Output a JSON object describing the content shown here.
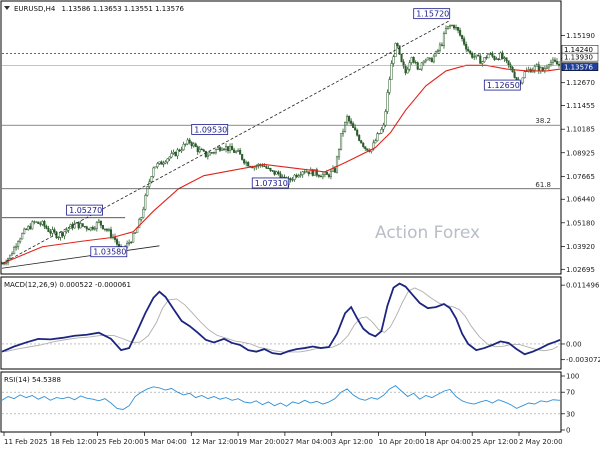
{
  "chart_data": [
    {
      "type": "candlestick",
      "symbol": "EURUSD,H4",
      "ohlc_header": "1.13586 1.13653 1.13551 1.13576",
      "watermark": "Action Forex",
      "ylim": [
        1.0255,
        1.1645
      ],
      "y_ticks": [
        "1.15190",
        "1.13970",
        "1.12670",
        "1.11455",
        "1.10185",
        "1.08925",
        "1.07665",
        "1.06440",
        "1.05180",
        "1.03920",
        "1.02695"
      ],
      "x_ticks": [
        "11 Feb 2025",
        "18 Feb 12:00",
        "25 Feb 20:00",
        "5 Mar 04:00",
        "12 Mar 12:00",
        "19 Mar 20:00",
        "27 Mar 04:00",
        "3 Apr 12:00",
        "10 Apr 20:00",
        "18 Apr 04:00",
        "25 Apr 12:00",
        "2 May 20:00"
      ],
      "price_path": [
        [
          0,
          1.03
        ],
        [
          8,
          1.034
        ],
        [
          16,
          1.043
        ],
        [
          24,
          1.048
        ],
        [
          32,
          1.052
        ],
        [
          40,
          1.051
        ],
        [
          48,
          1.047
        ],
        [
          56,
          1.045
        ],
        [
          64,
          1.048
        ],
        [
          72,
          1.051
        ],
        [
          80,
          1.05
        ],
        [
          88,
          1.049
        ],
        [
          96,
          1.052
        ],
        [
          104,
          1.048
        ],
        [
          112,
          1.043
        ],
        [
          118,
          1.0358
        ],
        [
          124,
          1.04
        ],
        [
          132,
          1.046
        ],
        [
          138,
          1.055
        ],
        [
          144,
          1.07
        ],
        [
          150,
          1.082
        ],
        [
          156,
          1.083
        ],
        [
          162,
          1.086
        ],
        [
          170,
          1.088
        ],
        [
          178,
          1.092
        ],
        [
          186,
          1.0953
        ],
        [
          194,
          1.091
        ],
        [
          202,
          1.088
        ],
        [
          210,
          1.09
        ],
        [
          218,
          1.093
        ],
        [
          226,
          1.091
        ],
        [
          234,
          1.089
        ],
        [
          242,
          1.084
        ],
        [
          250,
          1.082
        ],
        [
          258,
          1.083
        ],
        [
          266,
          1.079
        ],
        [
          274,
          1.078
        ],
        [
          282,
          1.0731
        ],
        [
          290,
          1.077
        ],
        [
          298,
          1.08
        ],
        [
          306,
          1.079
        ],
        [
          314,
          1.078
        ],
        [
          322,
          1.077
        ],
        [
          330,
          1.08
        ],
        [
          336,
          1.098
        ],
        [
          342,
          1.108
        ],
        [
          348,
          1.102
        ],
        [
          354,
          1.097
        ],
        [
          360,
          1.092
        ],
        [
          366,
          1.091
        ],
        [
          372,
          1.098
        ],
        [
          378,
          1.103
        ],
        [
          383,
          1.125
        ],
        [
          387,
          1.14
        ],
        [
          391,
          1.148
        ],
        [
          395,
          1.138
        ],
        [
          400,
          1.132
        ],
        [
          406,
          1.142
        ],
        [
          412,
          1.133
        ],
        [
          418,
          1.14
        ],
        [
          424,
          1.138
        ],
        [
          430,
          1.142
        ],
        [
          436,
          1.148
        ],
        [
          440,
          1.155
        ],
        [
          444,
          1.157
        ],
        [
          448,
          1.1572
        ],
        [
          452,
          1.154
        ],
        [
          458,
          1.148
        ],
        [
          464,
          1.142
        ],
        [
          470,
          1.14
        ],
        [
          476,
          1.138
        ],
        [
          482,
          1.142
        ],
        [
          488,
          1.14
        ],
        [
          494,
          1.141
        ],
        [
          500,
          1.137
        ],
        [
          506,
          1.133
        ],
        [
          512,
          1.1265
        ],
        [
          518,
          1.132
        ],
        [
          524,
          1.134
        ],
        [
          530,
          1.135
        ],
        [
          536,
          1.133
        ],
        [
          542,
          1.138
        ],
        [
          548,
          1.137
        ],
        [
          553,
          1.1358
        ]
      ],
      "ma_path": [
        [
          0,
          1.03
        ],
        [
          40,
          1.039
        ],
        [
          80,
          1.042
        ],
        [
          110,
          1.044
        ],
        [
          130,
          1.047
        ],
        [
          150,
          1.058
        ],
        [
          175,
          1.07
        ],
        [
          200,
          1.077
        ],
        [
          230,
          1.08
        ],
        [
          260,
          1.083
        ],
        [
          290,
          1.081
        ],
        [
          320,
          1.079
        ],
        [
          340,
          1.084
        ],
        [
          370,
          1.092
        ],
        [
          385,
          1.1
        ],
        [
          400,
          1.112
        ],
        [
          420,
          1.125
        ],
        [
          440,
          1.133
        ],
        [
          460,
          1.136
        ],
        [
          480,
          1.136
        ],
        [
          500,
          1.134
        ],
        [
          520,
          1.133
        ],
        [
          540,
          1.133
        ],
        [
          553,
          1.134
        ]
      ],
      "annotations": [
        {
          "text": "1.15720",
          "price": 1.1572
        },
        {
          "text": "1.14240",
          "price": 1.1424
        },
        {
          "text": "1.13930",
          "price": 1.1393
        },
        {
          "text": "1.13576",
          "price": 1.13576
        },
        {
          "text": "1.12650",
          "price": 1.1265
        },
        {
          "text": "1.09530",
          "price": 1.0953
        },
        {
          "text": "1.07310",
          "price": 1.0731
        },
        {
          "text": "1.05270",
          "price": 1.0527
        },
        {
          "text": "1.03580",
          "price": 1.0358
        }
      ],
      "fib_levels": [
        {
          "label": "38.2",
          "price": 1.104
        },
        {
          "label": "61.8",
          "price": 1.07
        }
      ],
      "hlines": [
        1.1424,
        1.13576
      ]
    },
    {
      "type": "line",
      "title": "MACD(12,26,9) 0.000522 -0.000061",
      "ylim": [
        -0.0045,
        0.0125
      ],
      "y_ticks": [
        "0.011496",
        "0.00",
        "-0.003072"
      ],
      "macd_path": [
        [
          0,
          -0.0015
        ],
        [
          12,
          -0.0005
        ],
        [
          24,
          0.0003
        ],
        [
          36,
          0.001
        ],
        [
          48,
          0.0009
        ],
        [
          60,
          0.0012
        ],
        [
          72,
          0.0016
        ],
        [
          84,
          0.0018
        ],
        [
          96,
          0.0022
        ],
        [
          108,
          0.001
        ],
        [
          118,
          -0.0012
        ],
        [
          126,
          -0.0008
        ],
        [
          134,
          0.0025
        ],
        [
          142,
          0.006
        ],
        [
          150,
          0.009
        ],
        [
          156,
          0.0102
        ],
        [
          162,
          0.0092
        ],
        [
          170,
          0.0068
        ],
        [
          178,
          0.0045
        ],
        [
          186,
          0.0035
        ],
        [
          194,
          0.0022
        ],
        [
          202,
          0.0008
        ],
        [
          210,
          0.0003
        ],
        [
          220,
          0.001
        ],
        [
          228,
          0.0002
        ],
        [
          236,
          -0.0002
        ],
        [
          244,
          -0.0012
        ],
        [
          252,
          -0.0015
        ],
        [
          260,
          -0.001
        ],
        [
          268,
          -0.0018
        ],
        [
          276,
          -0.002
        ],
        [
          284,
          -0.0014
        ],
        [
          292,
          -0.001
        ],
        [
          300,
          -0.0008
        ],
        [
          308,
          -0.0005
        ],
        [
          316,
          -0.0008
        ],
        [
          324,
          -0.0006
        ],
        [
          332,
          0.002
        ],
        [
          340,
          0.006
        ],
        [
          346,
          0.0072
        ],
        [
          352,
          0.005
        ],
        [
          358,
          0.003
        ],
        [
          364,
          0.002
        ],
        [
          370,
          0.0015
        ],
        [
          376,
          0.0025
        ],
        [
          382,
          0.0075
        ],
        [
          388,
          0.011
        ],
        [
          394,
          0.0118
        ],
        [
          400,
          0.0112
        ],
        [
          406,
          0.0098
        ],
        [
          414,
          0.008
        ],
        [
          422,
          0.007
        ],
        [
          430,
          0.0072
        ],
        [
          438,
          0.0078
        ],
        [
          444,
          0.007
        ],
        [
          450,
          0.005
        ],
        [
          456,
          0.002
        ],
        [
          462,
          0.0
        ],
        [
          470,
          -0.0012
        ],
        [
          478,
          -0.0008
        ],
        [
          486,
          -0.0002
        ],
        [
          494,
          0.0005
        ],
        [
          502,
          0.0002
        ],
        [
          510,
          -0.001
        ],
        [
          518,
          -0.002
        ],
        [
          526,
          -0.0015
        ],
        [
          534,
          -0.0008
        ],
        [
          542,
          0.0
        ],
        [
          548,
          0.0004
        ],
        [
          553,
          0.0008
        ]
      ]
    },
    {
      "type": "line",
      "title": "RSI(14) 54.5388",
      "ylim": [
        0,
        100
      ],
      "y_ticks": [
        "100",
        "70",
        "30",
        "0"
      ],
      "reference_levels": [
        70,
        30
      ],
      "rsi_path": [
        [
          0,
          55
        ],
        [
          6,
          62
        ],
        [
          12,
          58
        ],
        [
          18,
          65
        ],
        [
          24,
          60
        ],
        [
          30,
          64
        ],
        [
          36,
          57
        ],
        [
          42,
          62
        ],
        [
          48,
          55
        ],
        [
          54,
          60
        ],
        [
          60,
          58
        ],
        [
          66,
          61
        ],
        [
          72,
          56
        ],
        [
          78,
          63
        ],
        [
          84,
          59
        ],
        [
          90,
          57
        ],
        [
          96,
          54
        ],
        [
          102,
          58
        ],
        [
          108,
          50
        ],
        [
          114,
          40
        ],
        [
          120,
          38
        ],
        [
          126,
          45
        ],
        [
          132,
          62
        ],
        [
          138,
          70
        ],
        [
          144,
          76
        ],
        [
          150,
          80
        ],
        [
          156,
          78
        ],
        [
          162,
          74
        ],
        [
          168,
          77
        ],
        [
          174,
          70
        ],
        [
          180,
          65
        ],
        [
          186,
          68
        ],
        [
          192,
          60
        ],
        [
          198,
          64
        ],
        [
          204,
          58
        ],
        [
          210,
          62
        ],
        [
          216,
          57
        ],
        [
          222,
          60
        ],
        [
          228,
          55
        ],
        [
          234,
          58
        ],
        [
          240,
          52
        ],
        [
          246,
          50
        ],
        [
          252,
          54
        ],
        [
          258,
          47
        ],
        [
          264,
          52
        ],
        [
          270,
          45
        ],
        [
          276,
          50
        ],
        [
          282,
          44
        ],
        [
          288,
          52
        ],
        [
          294,
          49
        ],
        [
          300,
          55
        ],
        [
          306,
          50
        ],
        [
          312,
          53
        ],
        [
          318,
          48
        ],
        [
          324,
          52
        ],
        [
          330,
          58
        ],
        [
          336,
          70
        ],
        [
          342,
          76
        ],
        [
          348,
          65
        ],
        [
          354,
          58
        ],
        [
          360,
          55
        ],
        [
          366,
          60
        ],
        [
          372,
          57
        ],
        [
          378,
          64
        ],
        [
          384,
          76
        ],
        [
          390,
          82
        ],
        [
          396,
          72
        ],
        [
          402,
          62
        ],
        [
          408,
          68
        ],
        [
          414,
          57
        ],
        [
          420,
          64
        ],
        [
          426,
          60
        ],
        [
          432,
          66
        ],
        [
          438,
          72
        ],
        [
          444,
          75
        ],
        [
          450,
          62
        ],
        [
          456,
          54
        ],
        [
          462,
          50
        ],
        [
          468,
          48
        ],
        [
          474,
          52
        ],
        [
          480,
          55
        ],
        [
          486,
          50
        ],
        [
          492,
          56
        ],
        [
          498,
          52
        ],
        [
          504,
          47
        ],
        [
          510,
          40
        ],
        [
          516,
          45
        ],
        [
          522,
          50
        ],
        [
          528,
          48
        ],
        [
          534,
          54
        ],
        [
          540,
          52
        ],
        [
          546,
          56
        ],
        [
          553,
          55
        ]
      ]
    }
  ]
}
